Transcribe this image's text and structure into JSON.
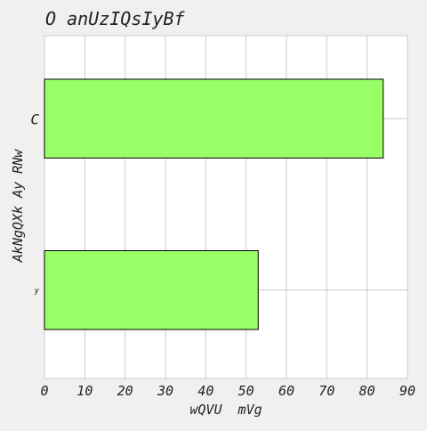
{
  "chart_data": {
    "type": "bar",
    "orientation": "horizontal",
    "title": "O anUzIQsIyBf",
    "xlabel": "wQVU  mVg",
    "ylabel": "AkNgQXk Ay RNw",
    "categories": [
      "C",
      "y"
    ],
    "values": [
      84,
      53
    ],
    "xlim": [
      0,
      90
    ],
    "xticks": [
      0,
      10,
      20,
      30,
      40,
      50,
      60,
      70,
      80,
      90
    ],
    "grid": true,
    "colors": {
      "bar": "#99ff66",
      "bar_edge": "#000000",
      "plot_background": "#ffffff",
      "page_background": "#f0f0f0",
      "grid": "#cccccc",
      "text": "#222222"
    }
  }
}
